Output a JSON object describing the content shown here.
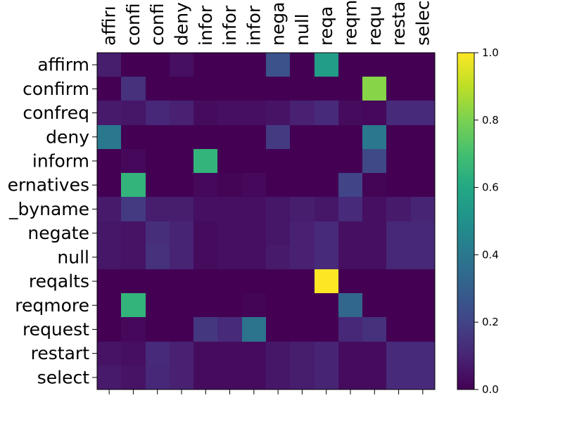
{
  "chart_data": {
    "type": "heatmap",
    "title": "",
    "xlabel": "",
    "ylabel": "",
    "row_labels": [
      "affirm",
      "confirm",
      "confreq",
      "deny",
      "inform",
      "ernatives",
      "_byname",
      "negate",
      "null",
      "reqalts",
      "reqmore",
      "request",
      "restart",
      "select"
    ],
    "col_labels": [
      "affirı",
      "confi",
      "confi",
      "deny",
      "infor",
      "infor",
      "infor",
      "nega",
      "null",
      "reqa",
      "reqm",
      "requ",
      "resta",
      "selec"
    ],
    "values": [
      [
        0.08,
        0.0,
        0.0,
        0.04,
        0.0,
        0.0,
        0.0,
        0.25,
        0.0,
        0.55,
        0.0,
        0.0,
        0.0,
        0.0
      ],
      [
        0.0,
        0.14,
        0.0,
        0.0,
        0.0,
        0.0,
        0.0,
        0.0,
        0.0,
        0.0,
        0.0,
        0.82,
        0.0,
        0.0
      ],
      [
        0.07,
        0.06,
        0.11,
        0.09,
        0.03,
        0.04,
        0.04,
        0.05,
        0.09,
        0.12,
        0.03,
        0.02,
        0.12,
        0.12
      ],
      [
        0.4,
        0.0,
        0.0,
        0.0,
        0.0,
        0.0,
        0.0,
        0.17,
        0.0,
        0.0,
        0.0,
        0.4,
        0.0,
        0.0
      ],
      [
        0.0,
        0.02,
        0.0,
        0.0,
        0.65,
        0.0,
        0.0,
        0.0,
        0.0,
        0.0,
        0.0,
        0.22,
        0.0,
        0.0
      ],
      [
        0.0,
        0.65,
        0.0,
        0.0,
        0.02,
        0.01,
        0.02,
        0.0,
        0.0,
        0.0,
        0.2,
        0.01,
        0.0,
        0.0
      ],
      [
        0.07,
        0.17,
        0.08,
        0.08,
        0.04,
        0.04,
        0.04,
        0.06,
        0.08,
        0.06,
        0.12,
        0.04,
        0.07,
        0.1
      ],
      [
        0.06,
        0.05,
        0.13,
        0.1,
        0.03,
        0.04,
        0.04,
        0.06,
        0.09,
        0.12,
        0.04,
        0.04,
        0.11,
        0.11
      ],
      [
        0.06,
        0.05,
        0.14,
        0.1,
        0.03,
        0.04,
        0.04,
        0.07,
        0.09,
        0.12,
        0.04,
        0.04,
        0.11,
        0.11
      ],
      [
        0.0,
        0.0,
        0.0,
        0.0,
        0.0,
        0.0,
        0.0,
        0.0,
        0.0,
        1.0,
        0.0,
        0.0,
        0.0,
        0.0
      ],
      [
        0.0,
        0.65,
        0.0,
        0.0,
        0.0,
        0.0,
        0.01,
        0.0,
        0.0,
        0.0,
        0.33,
        0.0,
        0.0,
        0.0
      ],
      [
        0.0,
        0.02,
        0.0,
        0.0,
        0.16,
        0.12,
        0.38,
        0.0,
        0.0,
        0.0,
        0.11,
        0.14,
        0.0,
        0.0
      ],
      [
        0.05,
        0.04,
        0.12,
        0.09,
        0.03,
        0.03,
        0.03,
        0.06,
        0.08,
        0.1,
        0.03,
        0.03,
        0.12,
        0.12
      ],
      [
        0.07,
        0.05,
        0.11,
        0.09,
        0.03,
        0.03,
        0.03,
        0.06,
        0.08,
        0.1,
        0.03,
        0.03,
        0.12,
        0.12
      ]
    ],
    "colormap": "viridis",
    "vmin": 0.0,
    "vmax": 1.0,
    "colorbar_ticks": [
      "0.0",
      "0.2",
      "0.4",
      "0.6",
      "0.8",
      "1.0"
    ],
    "colorbar_tick_values": [
      0.0,
      0.2,
      0.4,
      0.6,
      0.8,
      1.0
    ],
    "grid": false,
    "legend": "colorbar-right"
  }
}
